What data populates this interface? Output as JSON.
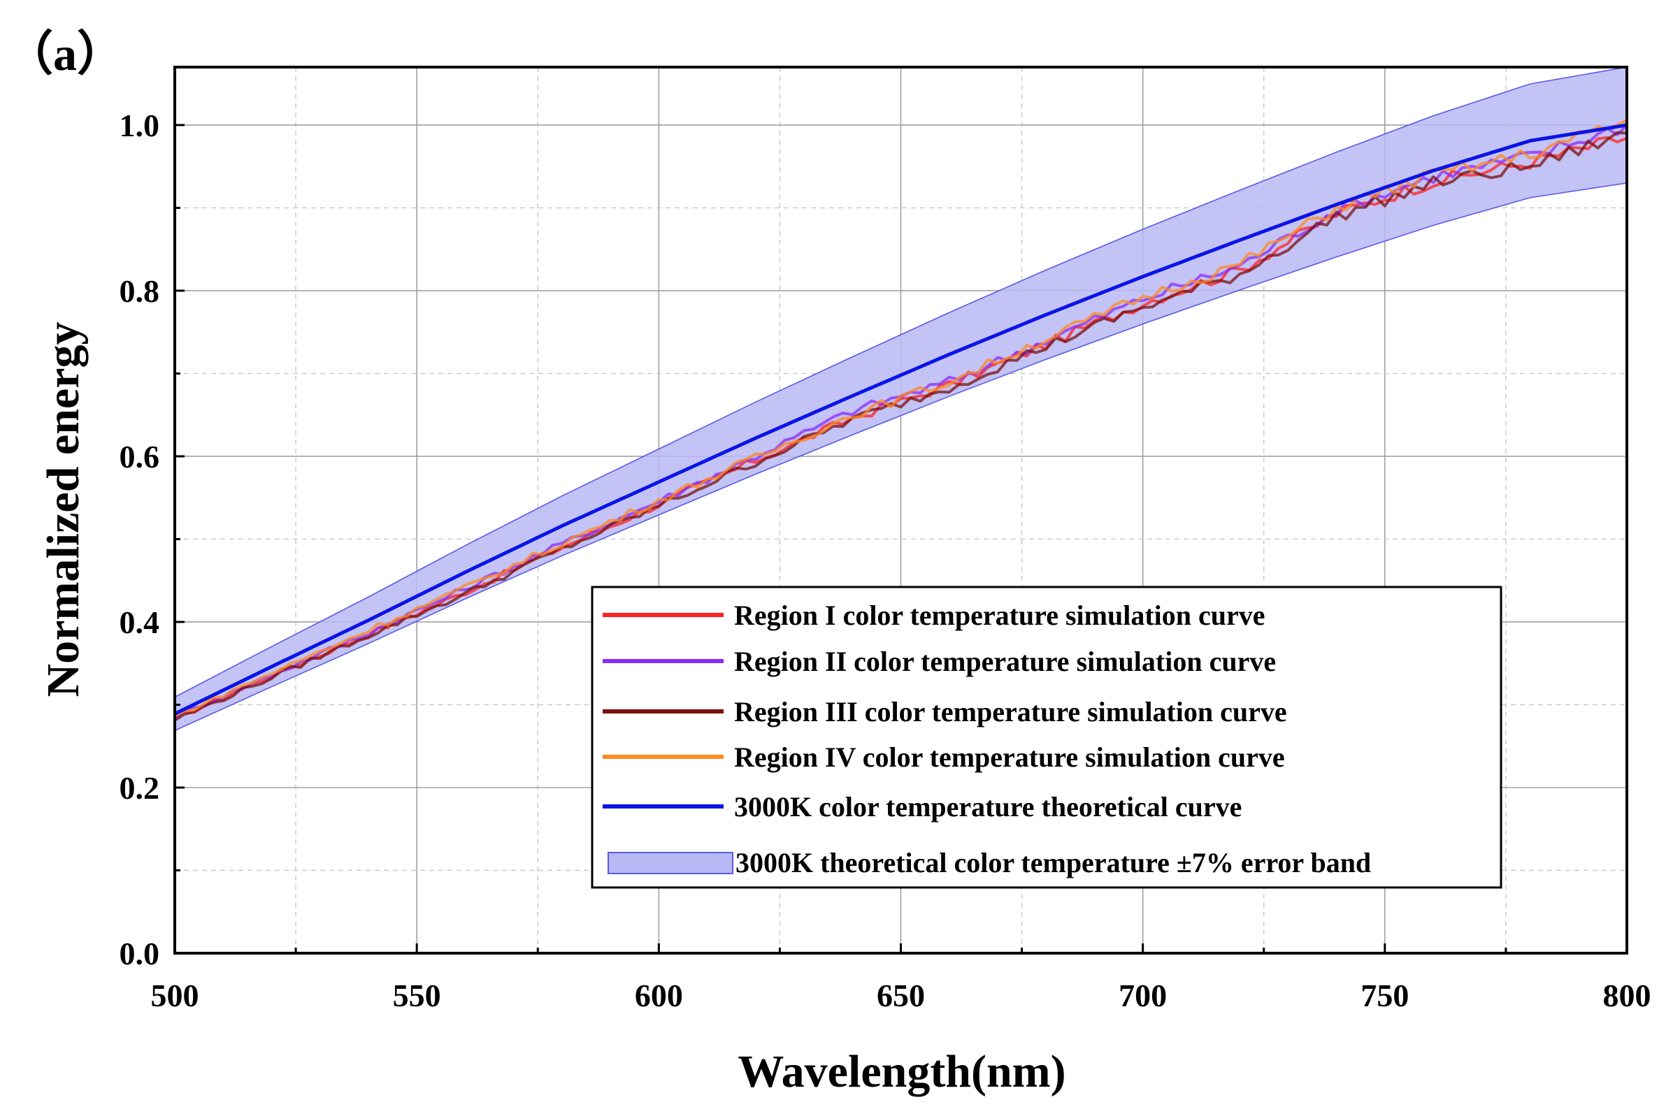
{
  "panel_label": "（a）",
  "chart_data": {
    "type": "line",
    "title": "",
    "xlabel": "Wavelength(nm)",
    "ylabel": "Normalized energy",
    "xlim": [
      500,
      800
    ],
    "ylim": [
      0,
      1.07
    ],
    "x_ticks": [
      500,
      550,
      600,
      650,
      700,
      750,
      800
    ],
    "x_tick_labels": [
      "500",
      "550",
      "600",
      "650",
      "700",
      "750",
      "800"
    ],
    "y_ticks": [
      0.0,
      0.2,
      0.4,
      0.6,
      0.8,
      1.0
    ],
    "y_tick_labels": [
      "0.0",
      "0.2",
      "0.4",
      "0.6",
      "0.8",
      "1.0"
    ],
    "grid": true,
    "legend_position": "lower-right",
    "x": [
      500,
      520,
      540,
      560,
      580,
      600,
      620,
      640,
      660,
      680,
      700,
      720,
      740,
      760,
      780,
      800
    ],
    "series": [
      {
        "name": "Region I color temperature simulation curve",
        "color": "#ff2020",
        "values": [
          0.283,
          0.335,
          0.385,
          0.436,
          0.49,
          0.542,
          0.595,
          0.646,
          0.686,
          0.735,
          0.785,
          0.825,
          0.893,
          0.932,
          0.955,
          0.985
        ]
      },
      {
        "name": "Region II color temperature simulation curve",
        "color": "#8b2cf5",
        "values": [
          0.285,
          0.336,
          0.387,
          0.44,
          0.494,
          0.546,
          0.6,
          0.655,
          0.69,
          0.74,
          0.79,
          0.83,
          0.898,
          0.938,
          0.962,
          1.0
        ]
      },
      {
        "name": "Region III color temperature simulation curve",
        "color": "#7a1010",
        "values": [
          0.282,
          0.333,
          0.384,
          0.434,
          0.488,
          0.54,
          0.593,
          0.645,
          0.683,
          0.733,
          0.78,
          0.82,
          0.89,
          0.93,
          0.95,
          0.99
        ]
      },
      {
        "name": "Region IV color temperature simulation curve",
        "color": "#ff8a1f",
        "values": [
          0.286,
          0.338,
          0.39,
          0.441,
          0.495,
          0.547,
          0.598,
          0.65,
          0.69,
          0.742,
          0.792,
          0.832,
          0.9,
          0.94,
          0.965,
          1.005
        ]
      },
      {
        "name": "3000K color temperature theoretical curve",
        "color": "#0a14e6",
        "values": [
          0.289,
          0.346,
          0.402,
          0.46,
          0.516,
          0.569,
          0.622,
          0.673,
          0.723,
          0.771,
          0.817,
          0.861,
          0.904,
          0.945,
          0.981,
          1.0
        ]
      }
    ],
    "error_band": {
      "name": "3000K theoretical color temperature ±7% error band",
      "fill": "#b8b8f5",
      "edge": "#5a5ae6",
      "relative_error": 0.07
    }
  }
}
